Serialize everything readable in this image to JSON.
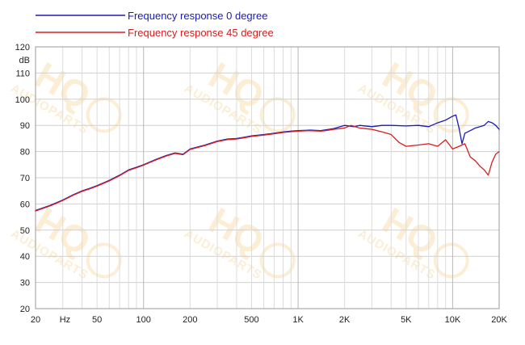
{
  "chart_data": {
    "type": "line",
    "title": "",
    "xlabel": "",
    "ylabel": "",
    "y_unit": "dB",
    "x_unit": "Hz",
    "x_scale": "log",
    "xlim": [
      20,
      20000
    ],
    "ylim": [
      20,
      120
    ],
    "grid": true,
    "legend_position": "top-left",
    "x_tick_labels": [
      {
        "value": 20,
        "label": "20"
      },
      {
        "value": 50,
        "label": "50"
      },
      {
        "value": 100,
        "label": "100"
      },
      {
        "value": 200,
        "label": "200"
      },
      {
        "value": 500,
        "label": "500"
      },
      {
        "value": 1000,
        "label": "1K"
      },
      {
        "value": 2000,
        "label": "2K"
      },
      {
        "value": 5000,
        "label": "5K"
      },
      {
        "value": 10000,
        "label": "10K"
      },
      {
        "value": 20000,
        "label": "20K"
      }
    ],
    "y_tick_labels": [
      {
        "value": 120,
        "label": "120"
      },
      {
        "value": 110,
        "label": "110"
      },
      {
        "value": 100,
        "label": "100"
      },
      {
        "value": 90,
        "label": "90"
      },
      {
        "value": 80,
        "label": "80"
      },
      {
        "value": 70,
        "label": "70"
      },
      {
        "value": 60,
        "label": "60"
      },
      {
        "value": 50,
        "label": "50"
      },
      {
        "value": 40,
        "label": "40"
      },
      {
        "value": 30,
        "label": "30"
      },
      {
        "value": 20,
        "label": "20"
      }
    ],
    "watermark_text": "HQ AUDIOPARTS",
    "series": [
      {
        "name": "Frequency response 0 degree",
        "color": "#1a1ab8",
        "points": [
          [
            20,
            57.5
          ],
          [
            25,
            59.5
          ],
          [
            30,
            61.5
          ],
          [
            35,
            63.5
          ],
          [
            40,
            65.0
          ],
          [
            45,
            66.0
          ],
          [
            50,
            67.0
          ],
          [
            60,
            69.0
          ],
          [
            70,
            71.0
          ],
          [
            80,
            73.0
          ],
          [
            90,
            74.0
          ],
          [
            100,
            75.0
          ],
          [
            120,
            77.0
          ],
          [
            140,
            78.5
          ],
          [
            160,
            79.5
          ],
          [
            180,
            79.0
          ],
          [
            200,
            81.0
          ],
          [
            250,
            82.5
          ],
          [
            300,
            84.0
          ],
          [
            350,
            84.8
          ],
          [
            400,
            85.0
          ],
          [
            450,
            85.5
          ],
          [
            500,
            86.0
          ],
          [
            600,
            86.5
          ],
          [
            700,
            87.0
          ],
          [
            800,
            87.5
          ],
          [
            900,
            87.8
          ],
          [
            1000,
            88.0
          ],
          [
            1200,
            88.2
          ],
          [
            1400,
            88.0
          ],
          [
            1500,
            88.3
          ],
          [
            1700,
            88.8
          ],
          [
            2000,
            90.0
          ],
          [
            2300,
            89.5
          ],
          [
            2500,
            90.0
          ],
          [
            3000,
            89.5
          ],
          [
            3500,
            90.0
          ],
          [
            4000,
            90.0
          ],
          [
            5000,
            89.8
          ],
          [
            6000,
            90.0
          ],
          [
            7000,
            89.5
          ],
          [
            8000,
            91.0
          ],
          [
            9000,
            92.0
          ],
          [
            10000,
            93.5
          ],
          [
            10500,
            94.0
          ],
          [
            11000,
            89.0
          ],
          [
            11500,
            83.0
          ],
          [
            12000,
            87.0
          ],
          [
            13000,
            88.0
          ],
          [
            14000,
            89.0
          ],
          [
            16000,
            90.0
          ],
          [
            17000,
            91.5
          ],
          [
            18000,
            91.0
          ],
          [
            19000,
            90.0
          ],
          [
            20000,
            88.5
          ]
        ]
      },
      {
        "name": "Frequency response 45 degree",
        "color": "#d42020",
        "points": [
          [
            20,
            57.3
          ],
          [
            25,
            59.3
          ],
          [
            30,
            61.3
          ],
          [
            35,
            63.3
          ],
          [
            40,
            64.8
          ],
          [
            45,
            65.8
          ],
          [
            50,
            66.8
          ],
          [
            60,
            68.8
          ],
          [
            70,
            70.8
          ],
          [
            80,
            72.8
          ],
          [
            90,
            73.8
          ],
          [
            100,
            74.8
          ],
          [
            120,
            76.8
          ],
          [
            140,
            78.3
          ],
          [
            160,
            79.3
          ],
          [
            180,
            78.8
          ],
          [
            200,
            80.8
          ],
          [
            250,
            82.3
          ],
          [
            300,
            83.8
          ],
          [
            350,
            84.6
          ],
          [
            400,
            84.8
          ],
          [
            450,
            85.3
          ],
          [
            500,
            85.8
          ],
          [
            600,
            86.3
          ],
          [
            700,
            86.8
          ],
          [
            800,
            87.3
          ],
          [
            900,
            87.6
          ],
          [
            1000,
            87.8
          ],
          [
            1200,
            88.0
          ],
          [
            1400,
            87.8
          ],
          [
            1500,
            88.0
          ],
          [
            1700,
            88.5
          ],
          [
            2000,
            89.0
          ],
          [
            2200,
            90.0
          ],
          [
            2500,
            89.0
          ],
          [
            3000,
            88.5
          ],
          [
            3500,
            87.5
          ],
          [
            4000,
            86.5
          ],
          [
            4500,
            83.5
          ],
          [
            5000,
            82.0
          ],
          [
            6000,
            82.5
          ],
          [
            7000,
            83.0
          ],
          [
            8000,
            82.0
          ],
          [
            9000,
            84.5
          ],
          [
            10000,
            81.0
          ],
          [
            11000,
            82.0
          ],
          [
            12000,
            83.0
          ],
          [
            13000,
            78.0
          ],
          [
            14000,
            76.5
          ],
          [
            15000,
            74.5
          ],
          [
            16000,
            73.0
          ],
          [
            17000,
            71.0
          ],
          [
            18000,
            76.0
          ],
          [
            19000,
            79.0
          ],
          [
            20000,
            80.0
          ]
        ]
      }
    ]
  }
}
